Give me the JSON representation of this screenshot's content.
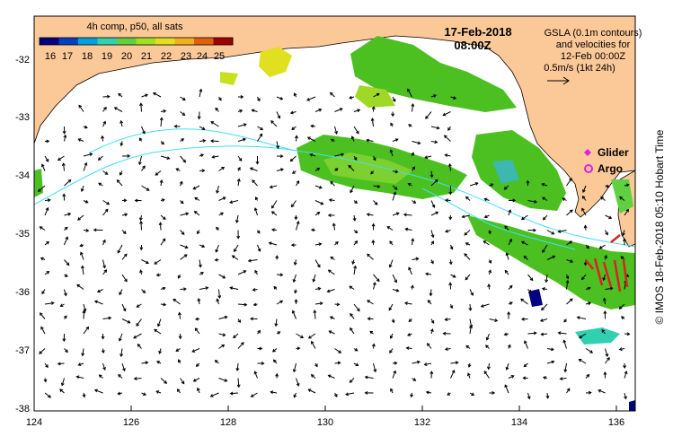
{
  "map": {
    "colorbar_title": "4h comp, p50, all sats",
    "colorbar_ticks": [
      "16",
      "17",
      "18",
      "19",
      "20",
      "21",
      "22",
      "23",
      "24",
      "25"
    ],
    "date": "17-Feb-2018",
    "time": "08:00Z",
    "info_lines": [
      "GSLA (0.1m contours)",
      "and velocities for",
      "12-Feb 00:00Z",
      "0.5m/s (1kt 24h)"
    ],
    "legend": [
      {
        "label": "Glider",
        "symbol": "diamond",
        "color": "#e020e0"
      },
      {
        "label": "Argo",
        "symbol": "circle",
        "color": "#e020e0"
      }
    ],
    "side_text": "© IMOS 18-Feb-2018 05:10 Hobart Time",
    "x_ticks": [
      "124",
      "126",
      "128",
      "130",
      "132",
      "134",
      "136"
    ],
    "y_ticks": [
      "-32",
      "-33",
      "-34",
      "-35",
      "-36",
      "-37",
      "-38"
    ],
    "colors": {
      "land": "#fbc898",
      "ocean": "#ffffff",
      "sst_green": "#4cc020",
      "contour": "#40e0f0",
      "glider": "#e020e0"
    },
    "colormap": [
      "#000080",
      "#0040c0",
      "#00a0e0",
      "#30d0b0",
      "#60d040",
      "#a0e020",
      "#e0e020",
      "#f0b020",
      "#e06010",
      "#a00000"
    ]
  }
}
